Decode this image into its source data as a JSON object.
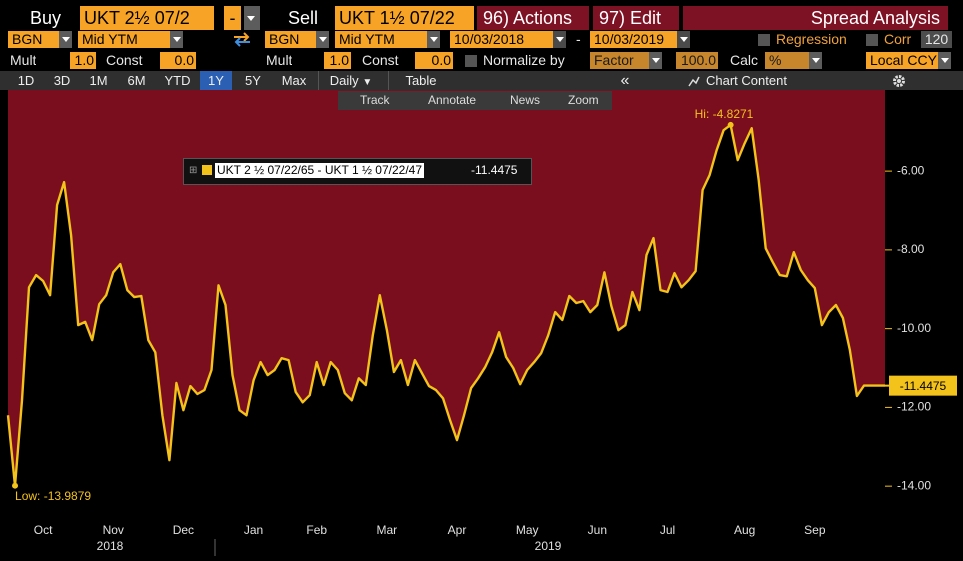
{
  "toolbar": {
    "buy_label": "Buy",
    "buy_security": "UKT 2½ 07/2",
    "buy_minus": "-",
    "sell_label": "Sell",
    "sell_security": "UKT 1½ 07/22",
    "actions": "96) Actions",
    "edit": "97) Edit",
    "function_name": "Spread Analysis",
    "source_1": "BGN",
    "field_1": "Mid YTM",
    "source_2": "BGN",
    "field_2": "Mid YTM",
    "start_date": "10/03/2018",
    "date_separator": "-",
    "end_date": "10/03/2019",
    "regression": "Regression",
    "corr": "Corr",
    "corr_window": "120",
    "mult_label": "Mult",
    "const_label": "Const",
    "mult_1": "1.0",
    "const_1": "0.0",
    "mult_2": "1.0",
    "const_2": "0.0",
    "normalize": "Normalize by",
    "normalize_method": "Factor",
    "normalize_value": "100.0",
    "calc": "Calc",
    "calc_unit": "%",
    "currency": "Local CCY",
    "periods": [
      "1D",
      "3D",
      "1M",
      "6M",
      "YTD",
      "1Y",
      "5Y",
      "Max"
    ],
    "active_period": "1Y",
    "frequency": "Daily",
    "table": "Table",
    "chart_content": "Chart Content",
    "chart_tools": [
      "Track",
      "Annotate",
      "News",
      "Zoom"
    ]
  },
  "chart_data": {
    "type": "line",
    "categories": [
      null,
      null,
      null,
      null,
      null,
      "Oct",
      null,
      null,
      null,
      null,
      null,
      null,
      null,
      null,
      null,
      "Nov",
      null,
      null,
      null,
      null,
      null,
      null,
      null,
      null,
      null,
      "Dec",
      null,
      null,
      null,
      null,
      null,
      null,
      null,
      null,
      null,
      "Jan",
      null,
      null,
      null,
      null,
      null,
      null,
      null,
      null,
      "Feb",
      null,
      null,
      null,
      null,
      null,
      null,
      null,
      null,
      null,
      "Mar",
      null,
      null,
      null,
      null,
      null,
      null,
      null,
      null,
      null,
      "Apr",
      null,
      null,
      null,
      null,
      null,
      null,
      null,
      null,
      null,
      "May",
      null,
      null,
      null,
      null,
      null,
      null,
      null,
      null,
      null,
      "Jun",
      null,
      null,
      null,
      null,
      null,
      null,
      null,
      null,
      null,
      "Jul",
      null,
      null,
      null,
      null,
      null,
      null,
      null,
      null,
      null,
      null,
      "Aug",
      null,
      null,
      null,
      null,
      null,
      null,
      null,
      null,
      null,
      "Sep",
      null,
      null,
      null,
      null,
      null,
      null,
      null,
      null,
      null,
      null
    ],
    "years": [
      "2018",
      "2019"
    ],
    "series": [
      {
        "name": "UKT 2 ½ 07/22/65 - UKT 1 ½ 07/22/47",
        "color": "#f3c21b",
        "values": [
          -12.2,
          -13.9879,
          -11.82,
          -8.95,
          -8.64,
          -8.79,
          -9.15,
          -6.86,
          -6.28,
          -7.63,
          -9.91,
          -9.83,
          -10.29,
          -9.38,
          -9.15,
          -8.57,
          -8.36,
          -9.02,
          -9.2,
          -9.17,
          -10.29,
          -10.6,
          -12.2,
          -13.34,
          -11.38,
          -12.07,
          -11.46,
          -11.66,
          -11.56,
          -11.05,
          -8.9,
          -9.4,
          -11.18,
          -12.07,
          -12.2,
          -11.31,
          -10.85,
          -11.18,
          -11.05,
          -10.75,
          -10.8,
          -11.61,
          -11.87,
          -11.69,
          -10.85,
          -11.43,
          -10.85,
          -11.05,
          -11.64,
          -11.82,
          -11.26,
          -11.43,
          -10.17,
          -9.15,
          -10.04,
          -11.1,
          -10.8,
          -11.43,
          -10.8,
          -11.13,
          -11.46,
          -11.56,
          -11.77,
          -12.32,
          -12.83,
          -12.2,
          -11.51,
          -11.26,
          -10.98,
          -10.6,
          -10.09,
          -10.72,
          -11.0,
          -11.41,
          -11.05,
          -10.85,
          -10.62,
          -10.17,
          -9.58,
          -9.78,
          -9.17,
          -9.35,
          -9.3,
          -9.58,
          -9.4,
          -8.57,
          -9.43,
          -10.04,
          -9.91,
          -9.07,
          -9.53,
          -8.13,
          -7.7,
          -9.02,
          -9.07,
          -8.59,
          -8.95,
          -8.77,
          -8.54,
          -6.48,
          -6.1,
          -5.47,
          -4.96,
          -4.8271,
          -5.72,
          -5.29,
          -4.91,
          -6.23,
          -7.96,
          -8.31,
          -8.64,
          -8.67,
          -8.06,
          -8.51,
          -8.77,
          -8.97,
          -9.91,
          -9.58,
          -9.4,
          -9.73,
          -10.55,
          -11.71,
          -11.4475,
          -11.4475,
          -11.4475,
          -11.4475
        ]
      }
    ],
    "last_value_label": "-11.4475",
    "annotations": [
      {
        "text": "Hi: -4.8271",
        "at": "max"
      },
      {
        "text": "Low: -13.9879",
        "at": "min"
      }
    ],
    "ylim": [
      -14.91,
      -3.94
    ],
    "yticks": [
      {
        "value": -6,
        "label": "-6.00"
      },
      {
        "value": -8,
        "label": "-8.00"
      },
      {
        "value": -10,
        "label": "-10.00"
      },
      {
        "value": -12,
        "label": "-12.00"
      },
      {
        "value": -14,
        "label": "-14.00"
      }
    ],
    "grid": false,
    "fill_color": "#7a0e1e"
  }
}
